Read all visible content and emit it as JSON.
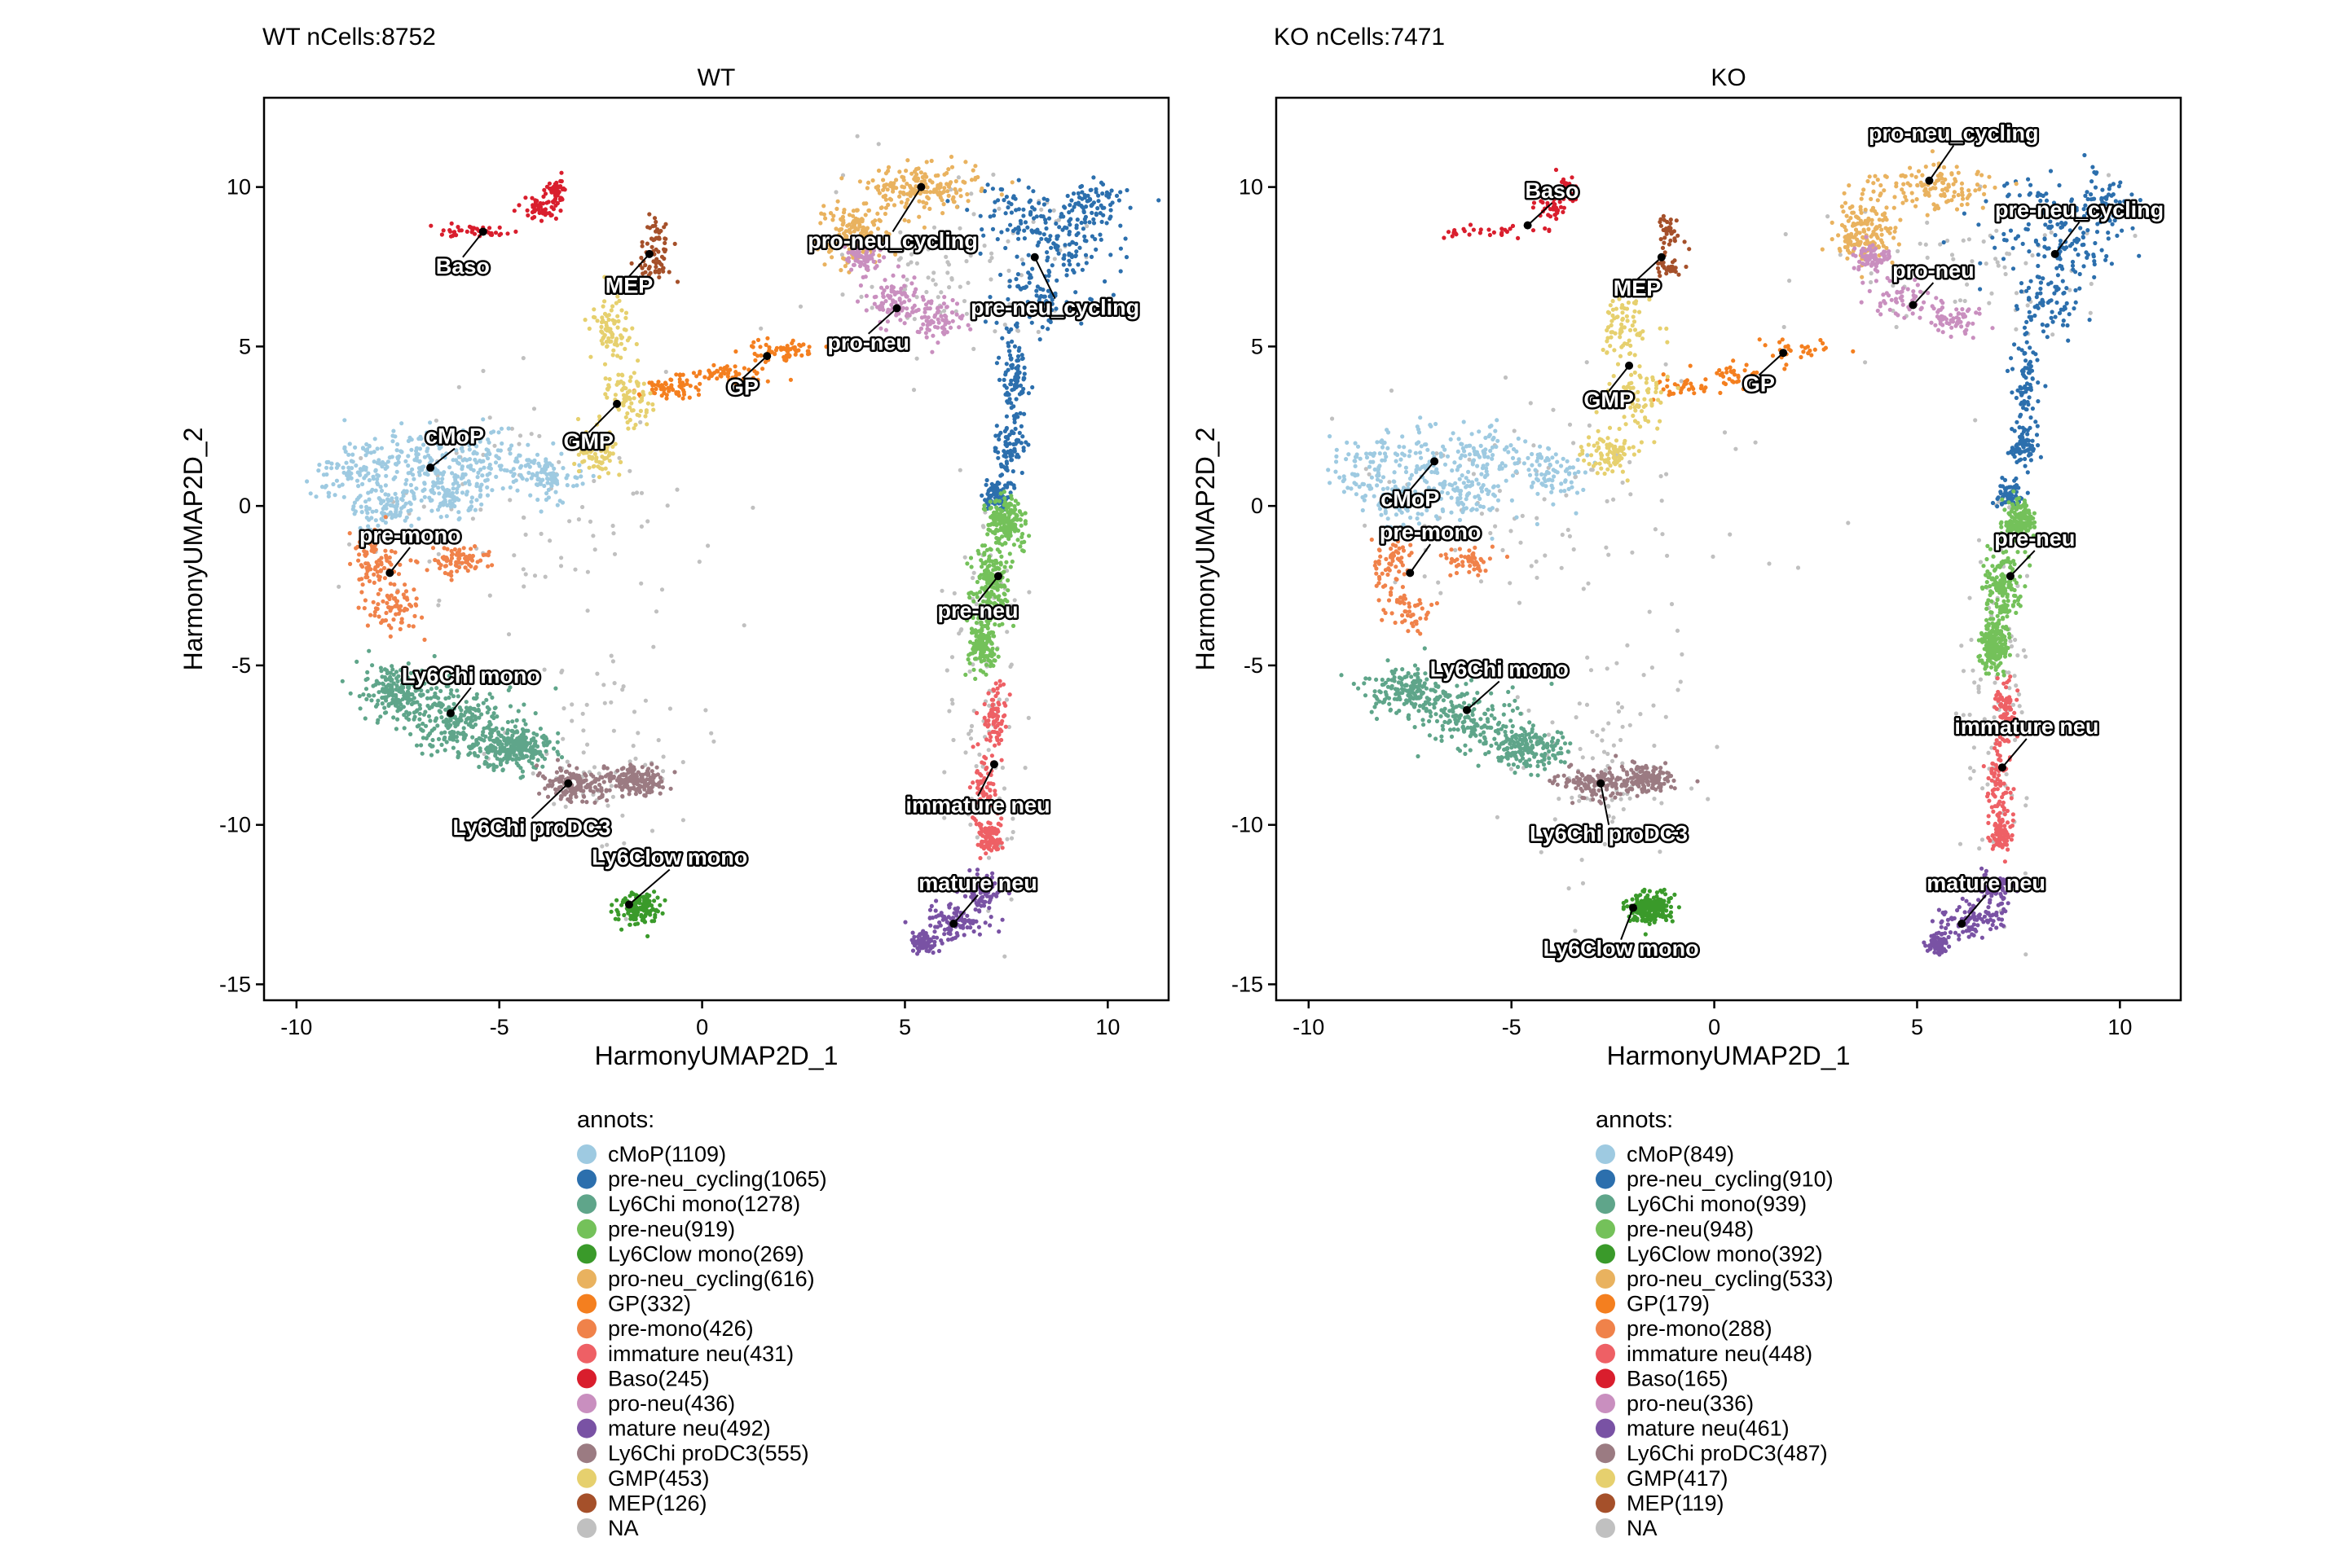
{
  "palette": {
    "cMoP": "#9ecae1",
    "pre-neu_cycling": "#2c6fad",
    "Ly6Chi mono": "#5fa58a",
    "pre-neu": "#74c15a",
    "Ly6Clow mono": "#3a9a2a",
    "pro-neu_cycling": "#e9b25f",
    "GP": "#f47f1f",
    "pre-mono": "#f0824a",
    "immature neu": "#ee6065",
    "Baso": "#d91e2d",
    "pro-neu": "#c98fbf",
    "mature neu": "#7952a4",
    "Ly6Chi proDC3": "#9b7b82",
    "GMP": "#e6d06e",
    "MEP": "#a5502a",
    "NA": "#c0c0c0"
  },
  "chart_data": [
    {
      "type": "scatter",
      "title": "WT nCells:8752",
      "facet_label": "WT",
      "xlabel": "HarmonyUMAP2D_1",
      "ylabel": "HarmonyUMAP2D_2",
      "xlim": [
        -10.8,
        11.5
      ],
      "ylim": [
        -15.5,
        12.8
      ],
      "xticks": [
        -10,
        -5,
        0,
        5,
        10
      ],
      "yticks": [
        -15,
        -10,
        -5,
        0,
        5,
        10
      ],
      "x_tick_labels": [
        "-10",
        "-5",
        "0",
        "5",
        "10"
      ],
      "y_tick_labels": [
        "-15",
        "-10",
        "-5",
        "0",
        "5",
        "10"
      ],
      "grid": false,
      "legend_title": "annots:",
      "legend_placement": "bottom",
      "legend_entries": [
        {
          "label": "cMoP(1109)",
          "key": "cMoP"
        },
        {
          "label": "pre-neu_cycling(1065)",
          "key": "pre-neu_cycling"
        },
        {
          "label": "Ly6Chi mono(1278)",
          "key": "Ly6Chi mono"
        },
        {
          "label": "pre-neu(919)",
          "key": "pre-neu"
        },
        {
          "label": "Ly6Clow mono(269)",
          "key": "Ly6Clow mono"
        },
        {
          "label": "pro-neu_cycling(616)",
          "key": "pro-neu_cycling"
        },
        {
          "label": "GP(332)",
          "key": "GP"
        },
        {
          "label": "pre-mono(426)",
          "key": "pre-mono"
        },
        {
          "label": "immature neu(431)",
          "key": "immature neu"
        },
        {
          "label": "Baso(245)",
          "key": "Baso"
        },
        {
          "label": "pro-neu(436)",
          "key": "pro-neu"
        },
        {
          "label": "mature neu(492)",
          "key": "mature neu"
        },
        {
          "label": "Ly6Chi proDC3(555)",
          "key": "Ly6Chi proDC3"
        },
        {
          "label": "GMP(453)",
          "key": "GMP"
        },
        {
          "label": "MEP(126)",
          "key": "MEP"
        },
        {
          "label": "NA",
          "key": "NA"
        }
      ],
      "cluster_labels": [
        {
          "text": "Baso",
          "x": -5.4,
          "y": 8.6,
          "lx": -5.9,
          "ly": 7.8
        },
        {
          "text": "MEP",
          "x": -1.3,
          "y": 7.9,
          "lx": -1.8,
          "ly": 7.2
        },
        {
          "text": "pro-neu_cycling",
          "x": 5.4,
          "y": 10.0,
          "lx": 4.7,
          "ly": 8.6
        },
        {
          "text": "pre-neu_cycling",
          "x": 8.2,
          "y": 7.8,
          "lx": 8.7,
          "ly": 6.5
        },
        {
          "text": "pro-neu",
          "x": 4.8,
          "y": 6.2,
          "lx": 4.1,
          "ly": 5.4
        },
        {
          "text": "GP",
          "x": 1.6,
          "y": 4.7,
          "lx": 1.0,
          "ly": 4.0
        },
        {
          "text": "GMP",
          "x": -2.1,
          "y": 3.2,
          "lx": -2.8,
          "ly": 2.3
        },
        {
          "text": "cMoP",
          "x": -6.7,
          "y": 1.2,
          "lx": -6.1,
          "ly": 1.8
        },
        {
          "text": "pre-mono",
          "x": -7.7,
          "y": -2.1,
          "lx": -7.2,
          "ly": -1.3
        },
        {
          "text": "pre-neu",
          "x": 7.3,
          "y": -2.2,
          "lx": 6.8,
          "ly": -3.0
        },
        {
          "text": "Ly6Chi mono",
          "x": -6.2,
          "y": -6.5,
          "lx": -5.7,
          "ly": -5.7
        },
        {
          "text": "Ly6Chi proDC3",
          "x": -3.3,
          "y": -8.7,
          "lx": -4.2,
          "ly": -9.8
        },
        {
          "text": "immature neu",
          "x": 7.2,
          "y": -8.1,
          "lx": 6.8,
          "ly": -9.1
        },
        {
          "text": "Ly6Clow mono",
          "x": -1.8,
          "y": -12.5,
          "lx": -0.8,
          "ly": -11.4
        },
        {
          "text": "mature neu",
          "x": 6.2,
          "y": -13.1,
          "lx": 6.8,
          "ly": -12.2
        }
      ]
    },
    {
      "type": "scatter",
      "title": "KO nCells:7471",
      "facet_label": "KO",
      "xlabel": "HarmonyUMAP2D_1",
      "ylabel": "HarmonyUMAP2D_2",
      "xlim": [
        -10.8,
        11.5
      ],
      "ylim": [
        -15.5,
        12.8
      ],
      "xticks": [
        -10,
        -5,
        0,
        5,
        10
      ],
      "yticks": [
        -15,
        -10,
        -5,
        0,
        5,
        10
      ],
      "x_tick_labels": [
        "-10",
        "-5",
        "0",
        "5",
        "10"
      ],
      "y_tick_labels": [
        "-15",
        "-10",
        "-5",
        "0",
        "5",
        "10"
      ],
      "grid": false,
      "legend_title": "annots:",
      "legend_placement": "bottom",
      "legend_entries": [
        {
          "label": "cMoP(849)",
          "key": "cMoP"
        },
        {
          "label": "pre-neu_cycling(910)",
          "key": "pre-neu_cycling"
        },
        {
          "label": "Ly6Chi mono(939)",
          "key": "Ly6Chi mono"
        },
        {
          "label": "pre-neu(948)",
          "key": "pre-neu"
        },
        {
          "label": "Ly6Clow mono(392)",
          "key": "Ly6Clow mono"
        },
        {
          "label": "pro-neu_cycling(533)",
          "key": "pro-neu_cycling"
        },
        {
          "label": "GP(179)",
          "key": "GP"
        },
        {
          "label": "pre-mono(288)",
          "key": "pre-mono"
        },
        {
          "label": "immature neu(448)",
          "key": "immature neu"
        },
        {
          "label": "Baso(165)",
          "key": "Baso"
        },
        {
          "label": "pro-neu(336)",
          "key": "pro-neu"
        },
        {
          "label": "mature neu(461)",
          "key": "mature neu"
        },
        {
          "label": "Ly6Chi proDC3(487)",
          "key": "Ly6Chi proDC3"
        },
        {
          "label": "GMP(417)",
          "key": "GMP"
        },
        {
          "label": "MEP(119)",
          "key": "MEP"
        },
        {
          "label": "NA",
          "key": "NA"
        }
      ],
      "cluster_labels": [
        {
          "text": "Baso",
          "x": -4.6,
          "y": 8.8,
          "lx": -4.0,
          "ly": 9.5
        },
        {
          "text": "MEP",
          "x": -1.3,
          "y": 7.8,
          "lx": -1.9,
          "ly": 7.1
        },
        {
          "text": "pro-neu_cycling",
          "x": 5.3,
          "y": 10.2,
          "lx": 5.9,
          "ly": 11.3
        },
        {
          "text": "pre-neu_cycling",
          "x": 8.4,
          "y": 7.9,
          "lx": 9.0,
          "ly": 8.9
        },
        {
          "text": "pro-neu",
          "x": 4.9,
          "y": 6.3,
          "lx": 5.4,
          "ly": 7.0
        },
        {
          "text": "GP",
          "x": 1.7,
          "y": 4.8,
          "lx": 1.1,
          "ly": 4.1
        },
        {
          "text": "GMP",
          "x": -2.1,
          "y": 4.4,
          "lx": -2.6,
          "ly": 3.6
        },
        {
          "text": "cMoP",
          "x": -6.9,
          "y": 1.4,
          "lx": -7.5,
          "ly": 0.5
        },
        {
          "text": "pre-mono",
          "x": -7.5,
          "y": -2.1,
          "lx": -7.0,
          "ly": -1.2
        },
        {
          "text": "pre-neu",
          "x": 7.3,
          "y": -2.2,
          "lx": 7.9,
          "ly": -1.4
        },
        {
          "text": "Ly6Chi mono",
          "x": -6.1,
          "y": -6.4,
          "lx": -5.3,
          "ly": -5.5
        },
        {
          "text": "Ly6Chi proDC3",
          "x": -2.8,
          "y": -8.7,
          "lx": -2.6,
          "ly": -10.0
        },
        {
          "text": "immature neu",
          "x": 7.1,
          "y": -8.2,
          "lx": 7.7,
          "ly": -7.3
        },
        {
          "text": "Ly6Clow mono",
          "x": -2.0,
          "y": -12.6,
          "lx": -2.3,
          "ly": -13.6
        },
        {
          "text": "mature neu",
          "x": 6.1,
          "y": -13.1,
          "lx": 6.7,
          "ly": -12.2
        }
      ]
    }
  ]
}
